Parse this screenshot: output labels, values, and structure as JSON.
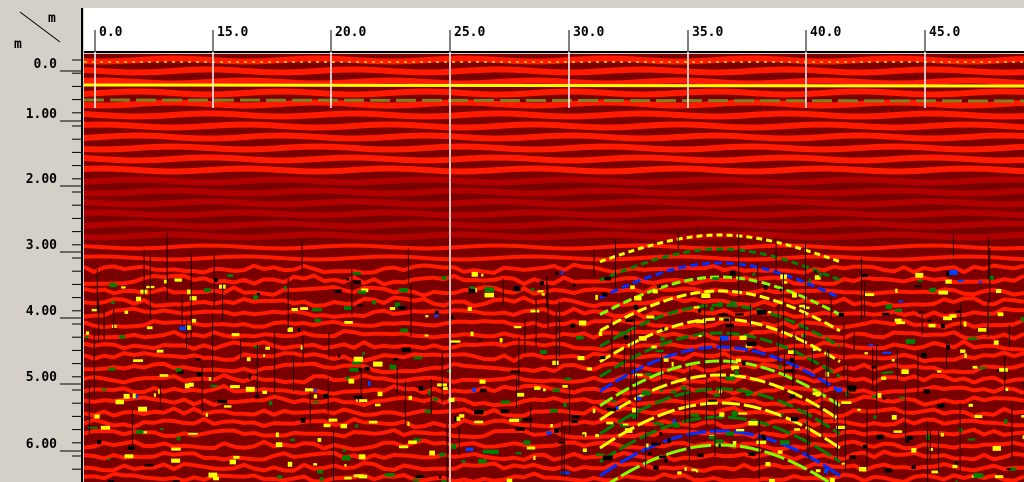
{
  "corner": {
    "x_unit": "m",
    "y_unit": "m"
  },
  "x_axis": {
    "labels": [
      "0.0",
      "15.0",
      "20.0",
      "25.0",
      "30.0",
      "35.0",
      "40.0",
      "45.0"
    ]
  },
  "y_axis": {
    "labels": [
      "0.0",
      "1.00",
      "2.00",
      "3.00",
      "4.00",
      "5.00",
      "6.00"
    ]
  }
}
